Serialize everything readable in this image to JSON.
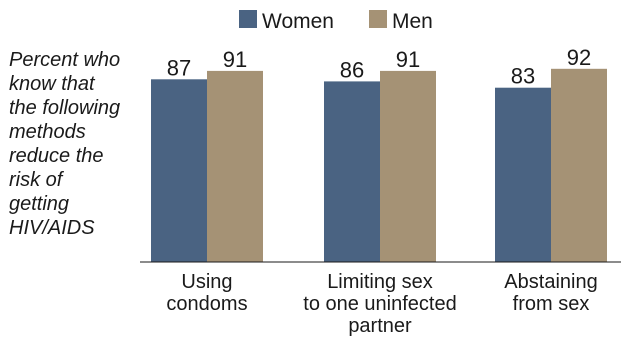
{
  "chart_data": {
    "type": "bar",
    "title": "",
    "xlabel": "",
    "ylabel": "",
    "side_note": [
      "Percent who",
      "know that",
      "the following",
      "methods",
      "reduce the",
      "risk of",
      "getting",
      "HIV/AIDS"
    ],
    "categories": [
      [
        "Using",
        "condoms"
      ],
      [
        "Limiting sex",
        "to one uninfected",
        "partner"
      ],
      [
        "Abstaining",
        "from sex"
      ]
    ],
    "series": [
      {
        "name": "Women",
        "values": [
          87,
          86,
          83
        ],
        "color": "#4a6382"
      },
      {
        "name": "Men",
        "values": [
          91,
          91,
          92
        ],
        "color": "#a59275"
      }
    ],
    "ylim": [
      0,
      100
    ],
    "grid": false,
    "legend_position": "top"
  }
}
